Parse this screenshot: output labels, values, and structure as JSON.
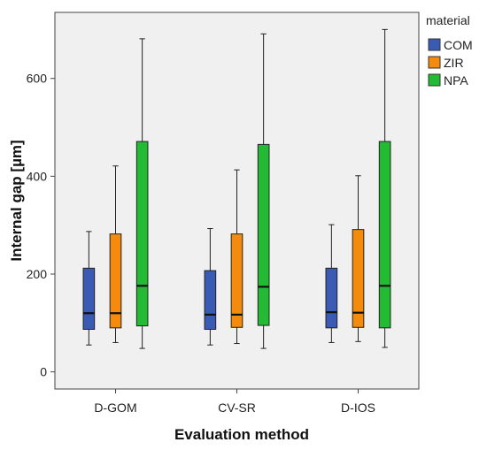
{
  "chart_data": {
    "type": "boxplot",
    "xlabel": "Evaluation method",
    "ylabel": "Internal gap [µm]",
    "categories": [
      "D-GOM",
      "CV-SR",
      "D-IOS"
    ],
    "ylim": [
      -35,
      735
    ],
    "yticks": [
      0,
      200,
      400,
      600
    ],
    "grid": false,
    "legend": {
      "title": "material",
      "position": "right"
    },
    "series": [
      {
        "name": "COM",
        "color": "#3a5bb3",
        "boxes": [
          {
            "min": 55,
            "q1": 87,
            "median": 120,
            "q3": 212,
            "max": 287
          },
          {
            "min": 55,
            "q1": 87,
            "median": 117,
            "q3": 207,
            "max": 293
          },
          {
            "min": 60,
            "q1": 90,
            "median": 122,
            "q3": 212,
            "max": 301
          }
        ]
      },
      {
        "name": "ZIR",
        "color": "#f58b0c",
        "boxes": [
          {
            "min": 60,
            "q1": 90,
            "median": 120,
            "q3": 282,
            "max": 421
          },
          {
            "min": 58,
            "q1": 91,
            "median": 117,
            "q3": 282,
            "max": 413
          },
          {
            "min": 62,
            "q1": 91,
            "median": 121,
            "q3": 291,
            "max": 401
          }
        ]
      },
      {
        "name": "NPA",
        "color": "#22bb33",
        "boxes": [
          {
            "min": 48,
            "q1": 94,
            "median": 176,
            "q3": 471,
            "max": 681
          },
          {
            "min": 48,
            "q1": 95,
            "median": 174,
            "q3": 465,
            "max": 691
          },
          {
            "min": 50,
            "q1": 90,
            "median": 176,
            "q3": 471,
            "max": 700
          }
        ]
      }
    ]
  }
}
